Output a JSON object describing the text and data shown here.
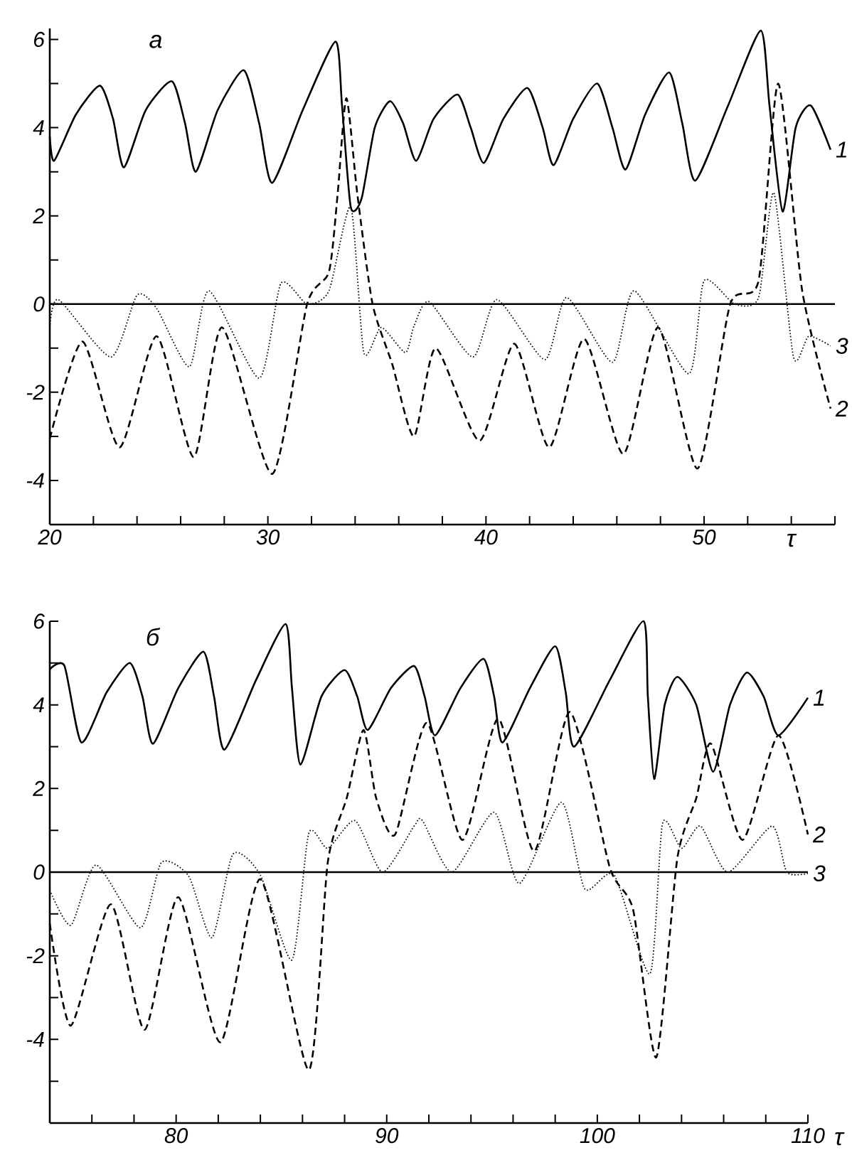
{
  "chart_data": [
    {
      "type": "line",
      "title": "а",
      "xlabel": "τ",
      "xlim": [
        20,
        56
      ],
      "ylim": [
        -5,
        6.25
      ],
      "xticks": [
        20,
        {
          "value": 22,
          "label": null
        },
        {
          "value": 24,
          "label": null
        },
        {
          "value": 26,
          "label": null
        },
        {
          "value": 28,
          "label": null
        },
        30,
        {
          "value": 32,
          "label": null
        },
        {
          "value": 34,
          "label": null
        },
        {
          "value": 36,
          "label": null
        },
        {
          "value": 38,
          "label": null
        },
        40,
        {
          "value": 42,
          "label": null
        },
        {
          "value": 44,
          "label": null
        },
        {
          "value": 46,
          "label": null
        },
        {
          "value": 48,
          "label": null
        },
        50,
        {
          "value": 52,
          "label": null
        },
        {
          "value": 54,
          "label": null
        },
        {
          "value": 56,
          "label": null
        }
      ],
      "yticks": [
        -4,
        {
          "value": -3,
          "label": null
        },
        -2,
        {
          "value": -1,
          "label": null
        },
        0,
        {
          "value": 1,
          "label": null
        },
        2,
        {
          "value": 3,
          "label": null
        },
        4,
        {
          "value": 5,
          "label": null
        },
        6
      ],
      "ref_lines": [
        {
          "axis": "y",
          "value": 0
        }
      ],
      "series": [
        {
          "name": "1",
          "color": "#000000",
          "line_style": "solid",
          "x": [
            20,
            20.2,
            21.2,
            22.3,
            22.9,
            23.4,
            24.4,
            25.6,
            26.2,
            26.7,
            27.7,
            28.9,
            29.6,
            30.2,
            31.6,
            33.1,
            33.4,
            33.8,
            34.3,
            34.9,
            35.6,
            36.2,
            36.8,
            37.6,
            38.7,
            39.3,
            39.9,
            40.8,
            41.9,
            42.6,
            43.1,
            44.0,
            45.1,
            45.8,
            46.4,
            47.3,
            48.4,
            49.0,
            49.6,
            51.1,
            52.6,
            53.0,
            53.6,
            54.2,
            54.9,
            55.8
          ],
          "values": [
            3.8,
            3.25,
            4.3,
            4.95,
            4.2,
            3.1,
            4.4,
            5.05,
            4.1,
            3.0,
            4.4,
            5.3,
            4.1,
            2.75,
            4.4,
            5.95,
            4.5,
            2.2,
            2.4,
            4.0,
            4.6,
            4.1,
            3.25,
            4.2,
            4.75,
            4.0,
            3.2,
            4.2,
            4.9,
            4.0,
            3.15,
            4.2,
            5.0,
            4.0,
            3.05,
            4.3,
            5.25,
            4.1,
            2.8,
            4.5,
            6.2,
            4.5,
            2.1,
            4.0,
            4.5,
            3.5
          ]
        },
        {
          "name": "2",
          "color": "#000000",
          "line_style": "dashed",
          "x": [
            20,
            21.5,
            23.2,
            24.9,
            26.6,
            27.9,
            30.2,
            31.8,
            32.8,
            33.2,
            33.6,
            34.1,
            34.8,
            35.7,
            36.7,
            37.7,
            39.7,
            41.3,
            42.9,
            44.5,
            46.3,
            47.9,
            49.7,
            51.2,
            52.5,
            53.4,
            54.5,
            55.8
          ],
          "values": [
            -3.05,
            -0.85,
            -3.25,
            -0.73,
            -3.47,
            -0.53,
            -3.85,
            0.0,
            0.73,
            2.5,
            4.67,
            2.5,
            0,
            -1.36,
            -3.0,
            -1.0,
            -3.1,
            -0.9,
            -3.25,
            -0.79,
            -3.4,
            -0.53,
            -3.73,
            0,
            0.53,
            5.0,
            0.3,
            -2.37
          ]
        },
        {
          "name": "3",
          "color": "#000000",
          "line_style": "dotted",
          "x": [
            20,
            20.4,
            22.8,
            24,
            24.9,
            26.4,
            27.3,
            29.6,
            30.6,
            31.8,
            32.8,
            33.8,
            34.4,
            35.2,
            36.3,
            36.7,
            37.4,
            39.4,
            40.5,
            42.7,
            43.7,
            45.8,
            46.8,
            49.3,
            50,
            51.4,
            52.5,
            53.2,
            54.1,
            54.8,
            55.8
          ],
          "values": [
            -0.53,
            0.1,
            -1.2,
            0.2,
            -0.1,
            -1.42,
            0.3,
            -1.68,
            0.47,
            0,
            0.3,
            2.2,
            -1.1,
            -0.53,
            -1.1,
            -0.5,
            0.05,
            -1.2,
            0.1,
            -1.26,
            0.15,
            -1.32,
            0.3,
            -1.58,
            0.53,
            0,
            0.15,
            2.52,
            -1.2,
            -0.73,
            -0.95
          ]
        }
      ]
    },
    {
      "type": "line",
      "title": "б",
      "xlabel": "τ",
      "xlim": [
        74,
        110
      ],
      "ylim": [
        -6,
        6
      ],
      "xticks": [
        {
          "value": 76,
          "label": null
        },
        {
          "value": 78,
          "label": null
        },
        80,
        {
          "value": 82,
          "label": null
        },
        {
          "value": 84,
          "label": null
        },
        {
          "value": 86,
          "label": null
        },
        {
          "value": 88,
          "label": null
        },
        90,
        {
          "value": 92,
          "label": null
        },
        {
          "value": 94,
          "label": null
        },
        {
          "value": 96,
          "label": null
        },
        {
          "value": 98,
          "label": null
        },
        100,
        {
          "value": 102,
          "label": null
        },
        {
          "value": 104,
          "label": null
        },
        {
          "value": 106,
          "label": null
        },
        {
          "value": 108,
          "label": null
        },
        110
      ],
      "yticks": [
        {
          "value": -5,
          "label": null
        },
        -4,
        {
          "value": -3,
          "label": null
        },
        -2,
        {
          "value": -1,
          "label": null
        },
        0,
        {
          "value": 1,
          "label": null
        },
        2,
        {
          "value": 3,
          "label": null
        },
        4,
        {
          "value": 5,
          "label": null
        },
        6
      ],
      "ref_lines": [
        {
          "axis": "y",
          "value": 0
        }
      ],
      "series": [
        {
          "name": "1",
          "color": "#000000",
          "line_style": "solid",
          "x": [
            74,
            74.7,
            75.5,
            76.7,
            77.8,
            78.4,
            78.9,
            80.1,
            81.3,
            81.8,
            82.3,
            83.8,
            85.2,
            85.5,
            85.9,
            86.9,
            88,
            88.6,
            89.1,
            90.2,
            91.3,
            91.8,
            92.3,
            93.5,
            94.6,
            95.1,
            95.5,
            96.8,
            98,
            98.5,
            98.9,
            100.6,
            102.2,
            102.4,
            102.7,
            103.2,
            103.8,
            104.7,
            105.5,
            106.3,
            107.1,
            107.9,
            108.6,
            110
          ],
          "values": [
            4.85,
            4.93,
            3.1,
            4.3,
            5.0,
            4.2,
            3.07,
            4.4,
            5.27,
            4.2,
            2.93,
            4.6,
            5.93,
            4.4,
            2.57,
            4.2,
            4.83,
            4.2,
            3.4,
            4.4,
            4.93,
            4.2,
            3.27,
            4.4,
            5.1,
            4.2,
            3.1,
            4.4,
            5.4,
            4.3,
            3.0,
            4.6,
            6.0,
            4.2,
            2.23,
            4.0,
            4.67,
            4.0,
            2.4,
            4.0,
            4.77,
            4.2,
            3.27,
            4.17
          ]
        },
        {
          "name": "2",
          "color": "#000000",
          "line_style": "dashed",
          "x": [
            74,
            75,
            76.9,
            78.5,
            80.1,
            82.1,
            84,
            86.3,
            87.2,
            88.1,
            88.9,
            89.5,
            90.4,
            91.9,
            93.6,
            95.3,
            97.0,
            98.7,
            100.6,
            101.7,
            102.8,
            103.8,
            104.7,
            105.4,
            106.9,
            108.6,
            110
          ],
          "values": [
            -1.23,
            -3.67,
            -0.77,
            -3.77,
            -0.6,
            -4.07,
            -0.17,
            -4.73,
            0.23,
            1.77,
            3.4,
            1.77,
            0.9,
            3.57,
            0.77,
            3.67,
            0.5,
            3.83,
            0.1,
            -0.9,
            -4.43,
            0.33,
            1.77,
            3.07,
            0.77,
            3.27,
            0.9
          ]
        },
        {
          "name": "3",
          "color": "#000000",
          "line_style": "dotted",
          "x": [
            74,
            75,
            76.2,
            78.3,
            79.3,
            80.6,
            81.7,
            82.7,
            84,
            85.5,
            86.3,
            87.2,
            88.5,
            89.8,
            91.3,
            91.7,
            93.1,
            95.1,
            96.3,
            98.3,
            99.4,
            100.8,
            102.5,
            103.1,
            104,
            104.9,
            106.2,
            108.3,
            109,
            110
          ],
          "values": [
            -0.43,
            -1.27,
            0.17,
            -1.33,
            0.23,
            -0.1,
            -1.57,
            0.43,
            -0.07,
            -2.1,
            0.93,
            0.57,
            1.23,
            0,
            1.1,
            1.23,
            0,
            1.43,
            -0.27,
            1.67,
            -0.4,
            -0.07,
            -2.43,
            1.17,
            0.57,
            1.1,
            0,
            1.1,
            0,
            -0.03
          ]
        }
      ]
    }
  ]
}
